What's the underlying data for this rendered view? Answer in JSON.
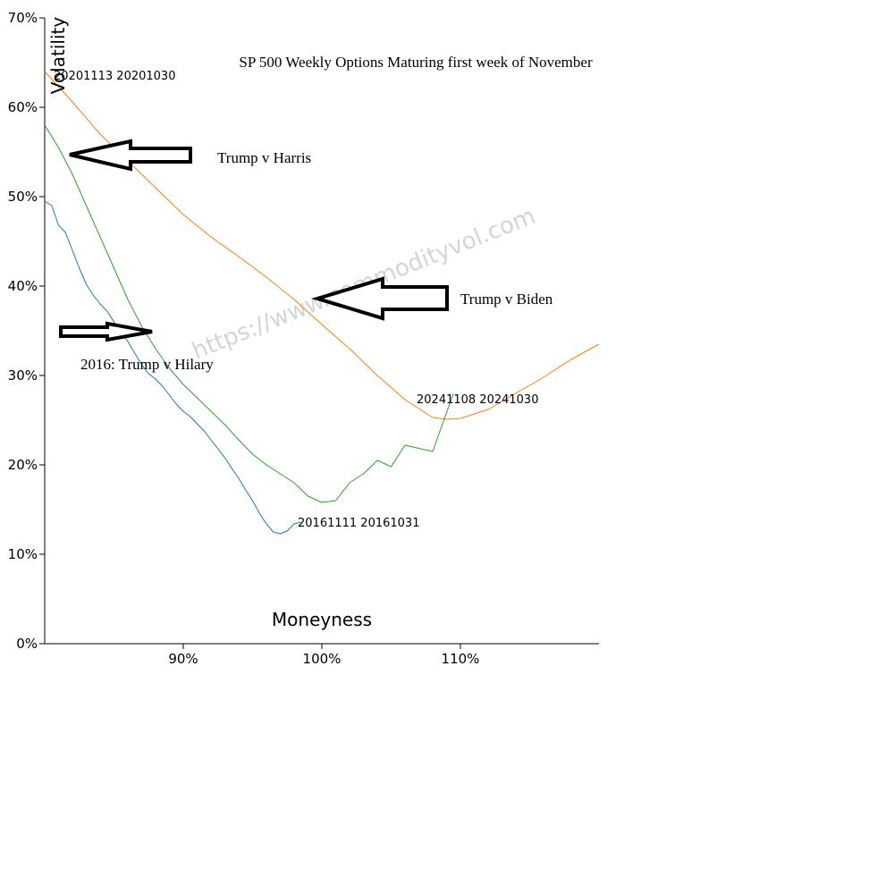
{
  "chart_data": {
    "type": "line",
    "title": "SP 500 Weekly Options Maturing first week of November",
    "xlabel": "Moneyness",
    "ylabel": "Volatility",
    "xlim": [
      0.8,
      1.2
    ],
    "ylim": [
      0,
      0.7
    ],
    "x_ticks": [
      {
        "value": 0.9,
        "label": "90%"
      },
      {
        "value": 1.0,
        "label": "100%"
      },
      {
        "value": 1.1,
        "label": "110%"
      }
    ],
    "y_ticks": [
      {
        "value": 0.0,
        "label": "0%"
      },
      {
        "value": 0.1,
        "label": "10%"
      },
      {
        "value": 0.2,
        "label": "20%"
      },
      {
        "value": 0.3,
        "label": "30%"
      },
      {
        "value": 0.4,
        "label": "40%"
      },
      {
        "value": 0.5,
        "label": "50%"
      },
      {
        "value": 0.6,
        "label": "60%"
      },
      {
        "value": 0.7,
        "label": "70%"
      }
    ],
    "grid": false,
    "series": [
      {
        "label": "20161111 20161031",
        "color": "#1f77b4",
        "points": [
          [
            0.8,
            0.495
          ],
          [
            0.805,
            0.49
          ],
          [
            0.81,
            0.468
          ],
          [
            0.815,
            0.46
          ],
          [
            0.82,
            0.44
          ],
          [
            0.825,
            0.42
          ],
          [
            0.83,
            0.402
          ],
          [
            0.835,
            0.39
          ],
          [
            0.84,
            0.38
          ],
          [
            0.845,
            0.372
          ],
          [
            0.85,
            0.36
          ],
          [
            0.855,
            0.348
          ],
          [
            0.86,
            0.338
          ],
          [
            0.865,
            0.325
          ],
          [
            0.87,
            0.312
          ],
          [
            0.875,
            0.302
          ],
          [
            0.88,
            0.296
          ],
          [
            0.885,
            0.288
          ],
          [
            0.89,
            0.278
          ],
          [
            0.895,
            0.268
          ],
          [
            0.9,
            0.26
          ],
          [
            0.905,
            0.254
          ],
          [
            0.91,
            0.246
          ],
          [
            0.915,
            0.238
          ],
          [
            0.92,
            0.228
          ],
          [
            0.925,
            0.218
          ],
          [
            0.93,
            0.208
          ],
          [
            0.935,
            0.196
          ],
          [
            0.94,
            0.185
          ],
          [
            0.945,
            0.172
          ],
          [
            0.95,
            0.16
          ],
          [
            0.955,
            0.146
          ],
          [
            0.96,
            0.134
          ],
          [
            0.965,
            0.125
          ],
          [
            0.97,
            0.123
          ],
          [
            0.975,
            0.126
          ],
          [
            0.98,
            0.134
          ],
          [
            0.985,
            0.136
          ]
        ]
      },
      {
        "label": "20201113 20201030",
        "color": "#ff7f0e",
        "points": [
          [
            0.8,
            0.64
          ],
          [
            0.82,
            0.606
          ],
          [
            0.84,
            0.57
          ],
          [
            0.86,
            0.54
          ],
          [
            0.88,
            0.51
          ],
          [
            0.9,
            0.48
          ],
          [
            0.92,
            0.455
          ],
          [
            0.94,
            0.433
          ],
          [
            0.96,
            0.41
          ],
          [
            0.98,
            0.385
          ],
          [
            1.0,
            0.357
          ],
          [
            1.02,
            0.33
          ],
          [
            1.04,
            0.3
          ],
          [
            1.06,
            0.273
          ],
          [
            1.08,
            0.253
          ],
          [
            1.09,
            0.251
          ],
          [
            1.1,
            0.252
          ],
          [
            1.12,
            0.262
          ],
          [
            1.14,
            0.28
          ],
          [
            1.16,
            0.298
          ],
          [
            1.18,
            0.318
          ],
          [
            1.2,
            0.335
          ]
        ]
      },
      {
        "label": "20241108 20241030",
        "color": "#2ca02c",
        "points": [
          [
            0.8,
            0.58
          ],
          [
            0.81,
            0.555
          ],
          [
            0.82,
            0.525
          ],
          [
            0.83,
            0.49
          ],
          [
            0.84,
            0.455
          ],
          [
            0.85,
            0.42
          ],
          [
            0.86,
            0.385
          ],
          [
            0.87,
            0.355
          ],
          [
            0.88,
            0.33
          ],
          [
            0.89,
            0.308
          ],
          [
            0.9,
            0.29
          ],
          [
            0.91,
            0.275
          ],
          [
            0.92,
            0.26
          ],
          [
            0.93,
            0.245
          ],
          [
            0.94,
            0.228
          ],
          [
            0.95,
            0.212
          ],
          [
            0.96,
            0.2
          ],
          [
            0.97,
            0.19
          ],
          [
            0.98,
            0.18
          ],
          [
            0.99,
            0.165
          ],
          [
            1.0,
            0.158
          ],
          [
            1.01,
            0.16
          ],
          [
            1.02,
            0.18
          ],
          [
            1.03,
            0.19
          ],
          [
            1.04,
            0.205
          ],
          [
            1.05,
            0.198
          ],
          [
            1.06,
            0.222
          ],
          [
            1.08,
            0.215
          ],
          [
            1.095,
            0.28
          ]
        ]
      }
    ],
    "annotations": [
      {
        "text": "Trump v Harris"
      },
      {
        "text": "Trump v Biden"
      },
      {
        "text": "2016: Trump v Hilary"
      }
    ],
    "watermark": "https://www.commodityvol.com"
  }
}
